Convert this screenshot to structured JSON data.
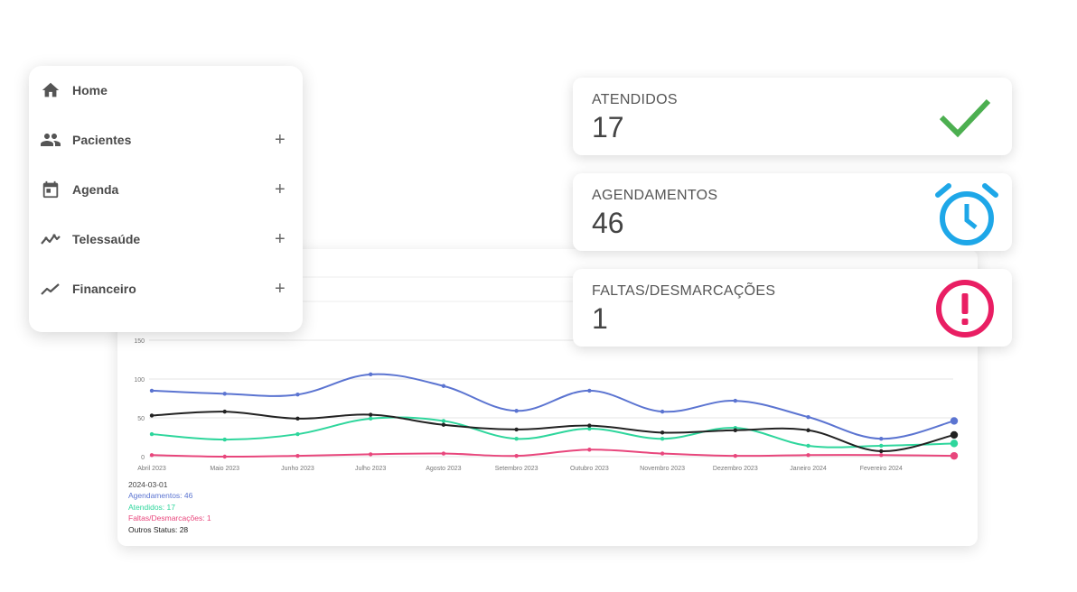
{
  "menu": {
    "items": [
      {
        "label": "Home",
        "icon": "home-icon",
        "expandable": false
      },
      {
        "label": "Pacientes",
        "icon": "people-icon",
        "expandable": true
      },
      {
        "label": "Agenda",
        "icon": "calendar-icon",
        "expandable": true
      },
      {
        "label": "Telessaúde",
        "icon": "multiline-chart-icon",
        "expandable": true
      },
      {
        "label": "Financeiro",
        "icon": "trending-icon",
        "expandable": true
      }
    ],
    "expand_symbol": "+"
  },
  "stats": [
    {
      "title": "ATENDIDOS",
      "value": "17",
      "icon": "check-icon",
      "color": "#4caf50"
    },
    {
      "title": "AGENDAMENTOS",
      "value": "46",
      "icon": "alarm-clock-icon",
      "color": "#1ea7e8"
    },
    {
      "title": "FALTAS/DESMARCAÇÕES",
      "value": "1",
      "icon": "alert-circle-icon",
      "color": "#e91e63"
    }
  ],
  "chart_data": {
    "type": "line",
    "categories": [
      "Abril 2023",
      "Maio 2023",
      "Junho 2023",
      "Julho 2023",
      "Agosto 2023",
      "Setembro 2023",
      "Outubro 2023",
      "Novembro 2023",
      "Dezembro 2023",
      "Janeiro 2024",
      "Fevereiro 2024",
      "2024-03-01"
    ],
    "x_tick_labels": [
      "Abril 2023",
      "Maio 2023",
      "Junho 2023",
      "Julho 2023",
      "Agosto 2023",
      "Setembro 2023",
      "Outubro 2023",
      "Novembro 2023",
      "Dezembro 2023",
      "Janeiro 2024",
      "Fevereiro 2024"
    ],
    "yticks": [
      "150",
      "100",
      "50",
      "0"
    ],
    "ylim": [
      0,
      150
    ],
    "grid": true,
    "series": [
      {
        "name": "Agendamentos",
        "color": "#5b74d1",
        "values": [
          85,
          81,
          80,
          106,
          91,
          59,
          85,
          58,
          72,
          51,
          23,
          46
        ]
      },
      {
        "name": "Atendidos",
        "color": "#2ed69c",
        "values": [
          29,
          22,
          29,
          49,
          46,
          23,
          36,
          23,
          37,
          14,
          14,
          17
        ]
      },
      {
        "name": "Faltas/Desmarcações",
        "color": "#e8467c",
        "values": [
          2,
          0,
          1,
          3,
          4,
          1,
          9,
          4,
          1,
          2,
          2,
          1
        ]
      },
      {
        "name": "Outros Status",
        "color": "#222222",
        "values": [
          53,
          58,
          49,
          54,
          41,
          35,
          40,
          31,
          34,
          34,
          7,
          28
        ]
      }
    ],
    "tooltip": {
      "date": "2024-03-01",
      "lines": [
        {
          "text": "Agendamentos: 46",
          "color": "#5b74d1"
        },
        {
          "text": "Atendidos: 17",
          "color": "#2ed69c"
        },
        {
          "text": "Faltas/Desmarcações: 1",
          "color": "#e8467c"
        },
        {
          "text": "Outros Status: 28",
          "color": "#222222"
        }
      ]
    }
  }
}
